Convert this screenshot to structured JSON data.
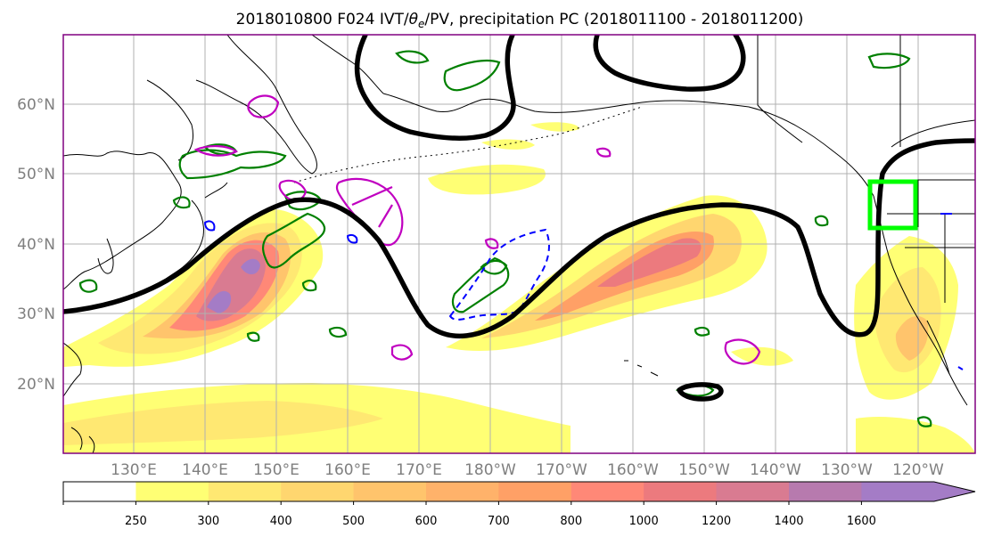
{
  "title": {
    "prefix": "2018010800 F024 IVT/",
    "theta": "θ",
    "theta_sub": "e",
    "suffix": "/PV, precipitation PC (2018011100 - 2018011200)"
  },
  "latitude_labels": [
    "60°N",
    "50°N",
    "40°N",
    "30°N",
    "20°N"
  ],
  "longitude_labels": [
    "130°E",
    "140°E",
    "150°E",
    "160°E",
    "170°E",
    "180°W",
    "170°W",
    "160°W",
    "150°W",
    "140°W",
    "130°W",
    "120°W"
  ],
  "colorbar": {
    "ticks": [
      "250",
      "300",
      "400",
      "500",
      "600",
      "700",
      "800",
      "1000",
      "1200",
      "1400",
      "1600"
    ],
    "colors": [
      "#ffffff",
      "#ffff74",
      "#ffe872",
      "#ffd66f",
      "#ffc46c",
      "#ffb26a",
      "#ffa066",
      "#ff8877",
      "#ec7a7e",
      "#d97b91",
      "#b77aae",
      "#a47cc6"
    ]
  },
  "colors": {
    "pv_contour": "#000000",
    "precip_contour": "#008000",
    "positive_anomaly": "#c000c0",
    "negative_anomaly": "#0000ff",
    "target_box": "#00ff00",
    "grid": "#b0b0b0"
  }
}
